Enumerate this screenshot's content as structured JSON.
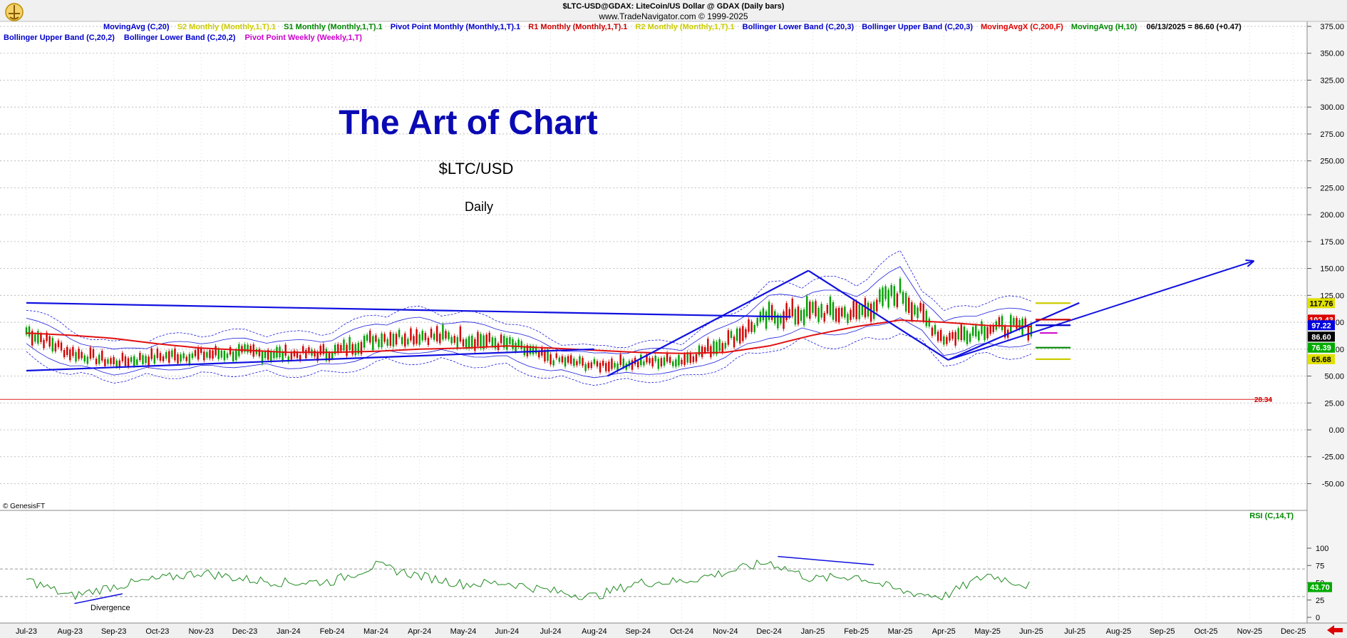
{
  "header": {
    "title": "$LTC-USD@GDAX:  LiteCoin/US Dollar @ GDAX  (Daily bars)",
    "copyright": "www.TradeNavigator.com © 1999-2025"
  },
  "legend_top": [
    {
      "text": "MovingAvg (C,20)",
      "color": "#0000cc"
    },
    {
      "text": "S2 Monthly (Monthly,1,T).1",
      "color": "#cccc00"
    },
    {
      "text": "S1 Monthly (Monthly,1,T).1",
      "color": "#008800"
    },
    {
      "text": "Pivot Point Monthly (Monthly,1,T).1",
      "color": "#0000cc"
    },
    {
      "text": "R1 Monthly (Monthly,1,T).1",
      "color": "#cc0000"
    },
    {
      "text": "R2 Monthly (Monthly,1,T).1",
      "color": "#cccc00"
    },
    {
      "text": "Bollinger Lower Band (C,20,3)",
      "color": "#0000cc"
    },
    {
      "text": "Bollinger Upper Band (C,20,3)",
      "color": "#0000cc"
    },
    {
      "text": "MovingAvgX (C,200,F)",
      "color": "#dd0000"
    },
    {
      "text": "MovingAvg (H,10)",
      "color": "#008800"
    },
    {
      "text": "06/13/2025 = 86.60 (+0.47)",
      "color": "#000000"
    }
  ],
  "legend_second": [
    {
      "text": "Bollinger Upper Band (C,20,2)",
      "color": "#0000cc"
    },
    {
      "text": "Bollinger Lower Band (C,20,2)",
      "color": "#0000cc"
    },
    {
      "text": "Pivot Point Weekly (Weekly,1,T)",
      "color": "#cc00cc"
    }
  ],
  "annotations": {
    "headline": "The Art of Chart",
    "symbol": "$LTC/USD",
    "period": "Daily",
    "divergence": "Divergence",
    "watermark": "© GenesisFT",
    "low_line_value": "28.34",
    "rsi_label": "RSI (C,14,T)"
  },
  "colors": {
    "bollinger": "#1a1adb",
    "ma200": "#e01010",
    "trendline": "#1010e0",
    "rsi": "#228b22",
    "price_up": "#00a000",
    "price_down": "#d00000",
    "pivot_r2": "#cccc00",
    "pivot_r1": "#cc0000",
    "pivot_pp": "#0000cc",
    "pivot_s1": "#008800",
    "pivot_weekly": "#cc00cc"
  },
  "price_tags": [
    {
      "text": "117.76",
      "bg": "#e0e000",
      "fg": "#000000",
      "value": 117.76
    },
    {
      "text": "102.43",
      "bg": "#dd0000",
      "fg": "#ffffff",
      "value": 102.43
    },
    {
      "text": "97.22",
      "bg": "#0000dd",
      "fg": "#ffffff",
      "value": 97.22
    },
    {
      "text": "86.60",
      "bg": "#000000",
      "fg": "#ffffff",
      "value": 86.6
    },
    {
      "text": "76.39",
      "bg": "#00aa00",
      "fg": "#ffffff",
      "value": 76.39
    },
    {
      "text": "65.68",
      "bg": "#e0e000",
      "fg": "#000000",
      "value": 65.68
    }
  ],
  "rsi_tag": {
    "text": "43.70",
    "bg": "#00aa00",
    "fg": "#ffffff",
    "value": 43.7
  },
  "chart_data": [
    {
      "type": "line",
      "title": "$LTC-USD@GDAX:  LiteCoin/US Dollar @ GDAX  (Daily bars)",
      "x": [
        "Jul-23",
        "Aug-23",
        "Sep-23",
        "Oct-23",
        "Nov-23",
        "Dec-23",
        "Jan-24",
        "Feb-24",
        "Mar-24",
        "Apr-24",
        "May-24",
        "Jun-24",
        "Jul-24",
        "Aug-24",
        "Sep-24",
        "Oct-24",
        "Nov-24",
        "Dec-24",
        "Jan-25",
        "Feb-25",
        "Mar-25",
        "Apr-25",
        "May-25",
        "Jun-25",
        "Jul-25",
        "Aug-25",
        "Sep-25",
        "Oct-25",
        "Nov-25",
        "Dec-25"
      ],
      "ylim": [
        -75,
        375
      ],
      "y_ticks": [
        375,
        350,
        325,
        300,
        275,
        250,
        225,
        200,
        175,
        150,
        125,
        100,
        75,
        50,
        25,
        0,
        -25,
        -50
      ],
      "y_tick_labels": [
        "375.00",
        "350.00",
        "325.00",
        "300.00",
        "275.00",
        "250.00",
        "225.00",
        "200.00",
        "175.00",
        "150.00",
        "125.00",
        "100.00",
        "75.00",
        "50.00",
        "25.00",
        "0.00",
        "-25.00",
        "-50.00"
      ],
      "grid": true,
      "legend_placement": "top",
      "series": [
        {
          "name": "$LTC-USD@GDAX",
          "values": [
            92,
            72,
            63,
            68,
            70,
            72,
            70,
            72,
            85,
            88,
            85,
            80,
            66,
            60,
            63,
            65,
            82,
            105,
            110,
            108,
            128,
            85,
            95,
            95,
            null,
            null,
            null,
            null,
            null,
            null
          ]
        },
        {
          "name": "MovingAvgX (C,200,F)",
          "values": [
            90,
            88,
            85,
            80,
            76,
            74,
            72,
            72,
            73,
            75,
            76,
            78,
            76,
            74,
            72,
            71,
            72,
            78,
            88,
            96,
            102,
            100,
            97,
            96,
            null,
            null,
            null,
            null,
            null,
            null
          ]
        }
      ],
      "horizontal_lines": [
        {
          "label": "28.34",
          "value": 28.34
        }
      ],
      "annotations": [
        "The Art of Chart",
        "$LTC/USD",
        "Daily"
      ]
    },
    {
      "type": "line",
      "title": "RSI (C,14,T)",
      "x": [
        "Jul-23",
        "Aug-23",
        "Sep-23",
        "Oct-23",
        "Nov-23",
        "Dec-23",
        "Jan-24",
        "Feb-24",
        "Mar-24",
        "Apr-24",
        "May-24",
        "Jun-24",
        "Jul-24",
        "Aug-24",
        "Sep-24",
        "Oct-24",
        "Nov-24",
        "Dec-24",
        "Jan-25",
        "Feb-25",
        "Mar-25",
        "Apr-25",
        "May-25",
        "Jun-25",
        "Jul-25",
        "Aug-25",
        "Sep-25",
        "Oct-25",
        "Nov-25",
        "Dec-25"
      ],
      "ylim": [
        0,
        100
      ],
      "y_ticks": [
        100,
        75,
        50,
        25,
        0
      ],
      "y_tick_labels": [
        "100",
        "75",
        "50",
        "25",
        "0"
      ],
      "reference_lines": [
        70,
        30
      ],
      "series": [
        {
          "name": "RSI (C,14,T)",
          "values": [
            55,
            30,
            45,
            55,
            65,
            55,
            50,
            52,
            75,
            60,
            48,
            50,
            38,
            30,
            50,
            52,
            65,
            80,
            55,
            60,
            38,
            30,
            62,
            45,
            null,
            null,
            null,
            null,
            null,
            null
          ]
        }
      ],
      "current_value": 43.7,
      "annotations": [
        "Divergence"
      ]
    }
  ]
}
